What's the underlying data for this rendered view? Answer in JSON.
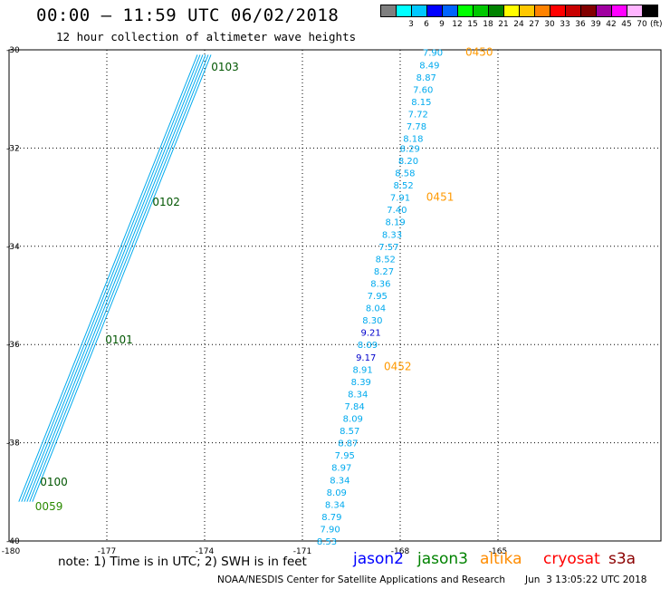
{
  "header": {
    "title": "00:00 – 11:59 UTC 06/02/2018",
    "subtitle": "12 hour collection of altimeter wave heights"
  },
  "colorbar": {
    "colors": [
      "#7f7f7f",
      "#00ffff",
      "#00c8ff",
      "#0000ff",
      "#0064ff",
      "#00ff00",
      "#00c800",
      "#008200",
      "#ffff00",
      "#ffc800",
      "#ff8200",
      "#ff0000",
      "#c80000",
      "#820000",
      "#a000a0",
      "#ff00ff",
      "#ffb4ff",
      "#000000"
    ],
    "labels": [
      "3",
      "6",
      "9",
      "12",
      "15",
      "18",
      "21",
      "24",
      "27",
      "30",
      "33",
      "36",
      "39",
      "42",
      "45",
      "70"
    ],
    "unit": "(ft)"
  },
  "footer": {
    "note": "note: 1) Time is in UTC; 2) SWH is in feet",
    "satellites": [
      {
        "name": "jason2",
        "color": "#0000ff"
      },
      {
        "name": "jason3",
        "color": "#008200"
      },
      {
        "name": "altika",
        "color": "#ff8c00"
      },
      {
        "name": "cryosat",
        "color": "#ff0000"
      },
      {
        "name": "s3a",
        "color": "#8b0000"
      }
    ],
    "credit": "NOAA/NESDIS Center for Satellite Applications and Research",
    "timestamp": "Jun  3 13:05:22 UTC 2018"
  },
  "chart_data": {
    "type": "scatter",
    "title": "00:00 – 11:59 UTC 06/02/2018",
    "xlim": [
      -180,
      -160
    ],
    "ylim": [
      -40,
      -30
    ],
    "x_ticks": [
      "-180",
      "-177",
      "-174",
      "-171",
      "-168",
      "-165"
    ],
    "y_ticks": [
      "-30",
      "-32",
      "-34",
      "-36",
      "-38",
      "-40"
    ],
    "grid": true,
    "series": [
      {
        "name": "altika",
        "color": "#00aaee",
        "points": [
          {
            "x": -167.0,
            "y": -30.05,
            "v": "7.90"
          },
          {
            "x": -167.1,
            "y": -30.3,
            "v": "8.49"
          },
          {
            "x": -167.2,
            "y": -30.55,
            "v": "8.87"
          },
          {
            "x": -167.3,
            "y": -30.8,
            "v": "7.60"
          },
          {
            "x": -167.35,
            "y": -31.05,
            "v": "8.15"
          },
          {
            "x": -167.45,
            "y": -31.3,
            "v": "7.72"
          },
          {
            "x": -167.5,
            "y": -31.55,
            "v": "7.78"
          },
          {
            "x": -167.6,
            "y": -31.8,
            "v": "8.18"
          },
          {
            "x": -167.7,
            "y": -32.0,
            "v": "8.29"
          },
          {
            "x": -167.75,
            "y": -32.25,
            "v": "8.20"
          },
          {
            "x": -167.85,
            "y": -32.5,
            "v": "8.58"
          },
          {
            "x": -167.9,
            "y": -32.75,
            "v": "8.52"
          },
          {
            "x": -168.0,
            "y": -33.0,
            "v": "7.91"
          },
          {
            "x": -168.1,
            "y": -33.25,
            "v": "7.40"
          },
          {
            "x": -168.15,
            "y": -33.5,
            "v": "8.19"
          },
          {
            "x": -168.25,
            "y": -33.75,
            "v": "8.33"
          },
          {
            "x": -168.35,
            "y": -34.0,
            "v": "7.57"
          },
          {
            "x": -168.45,
            "y": -34.25,
            "v": "8.52"
          },
          {
            "x": -168.5,
            "y": -34.5,
            "v": "8.27"
          },
          {
            "x": -168.6,
            "y": -34.75,
            "v": "8.36"
          },
          {
            "x": -168.7,
            "y": -35.0,
            "v": "7.95"
          },
          {
            "x": -168.75,
            "y": -35.25,
            "v": "8.04"
          },
          {
            "x": -168.85,
            "y": -35.5,
            "v": "8.30"
          },
          {
            "x": -168.9,
            "y": -35.75,
            "v": "9.21",
            "color": "#0000cc"
          },
          {
            "x": -169.0,
            "y": -36.0,
            "v": "8.09"
          },
          {
            "x": -169.05,
            "y": -36.25,
            "v": "9.17",
            "color": "#0000cc"
          },
          {
            "x": -169.15,
            "y": -36.5,
            "v": "8.91"
          },
          {
            "x": -169.2,
            "y": -36.75,
            "v": "8.39"
          },
          {
            "x": -169.3,
            "y": -37.0,
            "v": "8.34"
          },
          {
            "x": -169.4,
            "y": -37.25,
            "v": "7.84"
          },
          {
            "x": -169.45,
            "y": -37.5,
            "v": "8.09"
          },
          {
            "x": -169.55,
            "y": -37.75,
            "v": "8.57"
          },
          {
            "x": -169.6,
            "y": -38.0,
            "v": "8.87"
          },
          {
            "x": -169.7,
            "y": -38.25,
            "v": "7.95"
          },
          {
            "x": -169.8,
            "y": -38.5,
            "v": "8.97"
          },
          {
            "x": -169.85,
            "y": -38.75,
            "v": "8.34"
          },
          {
            "x": -169.95,
            "y": -39.0,
            "v": "8.09"
          },
          {
            "x": -170.0,
            "y": -39.25,
            "v": "8.34"
          },
          {
            "x": -170.1,
            "y": -39.5,
            "v": "8.79"
          },
          {
            "x": -170.15,
            "y": -39.75,
            "v": "7.90"
          },
          {
            "x": -170.25,
            "y": -40.0,
            "v": "8.53"
          }
        ]
      }
    ],
    "time_labels": [
      {
        "text": "0450",
        "x": -166.0,
        "y": -30.05,
        "color": "#ff9900"
      },
      {
        "text": "0451",
        "x": -167.2,
        "y": -33.0,
        "color": "#ff9900"
      },
      {
        "text": "0452",
        "x": -168.5,
        "y": -36.45,
        "color": "#ff9900"
      },
      {
        "text": "0103",
        "x": -173.8,
        "y": -30.35,
        "color": "#005500"
      },
      {
        "text": "0102",
        "x": -175.6,
        "y": -33.1,
        "color": "#005500"
      },
      {
        "text": "0101",
        "x": -177.05,
        "y": -35.9,
        "color": "#005500"
      },
      {
        "text": "0100",
        "x": -179.05,
        "y": -38.8,
        "color": "#005500"
      },
      {
        "text": "0059",
        "x": -179.2,
        "y": -39.3,
        "color": "#2b8a00"
      }
    ]
  }
}
